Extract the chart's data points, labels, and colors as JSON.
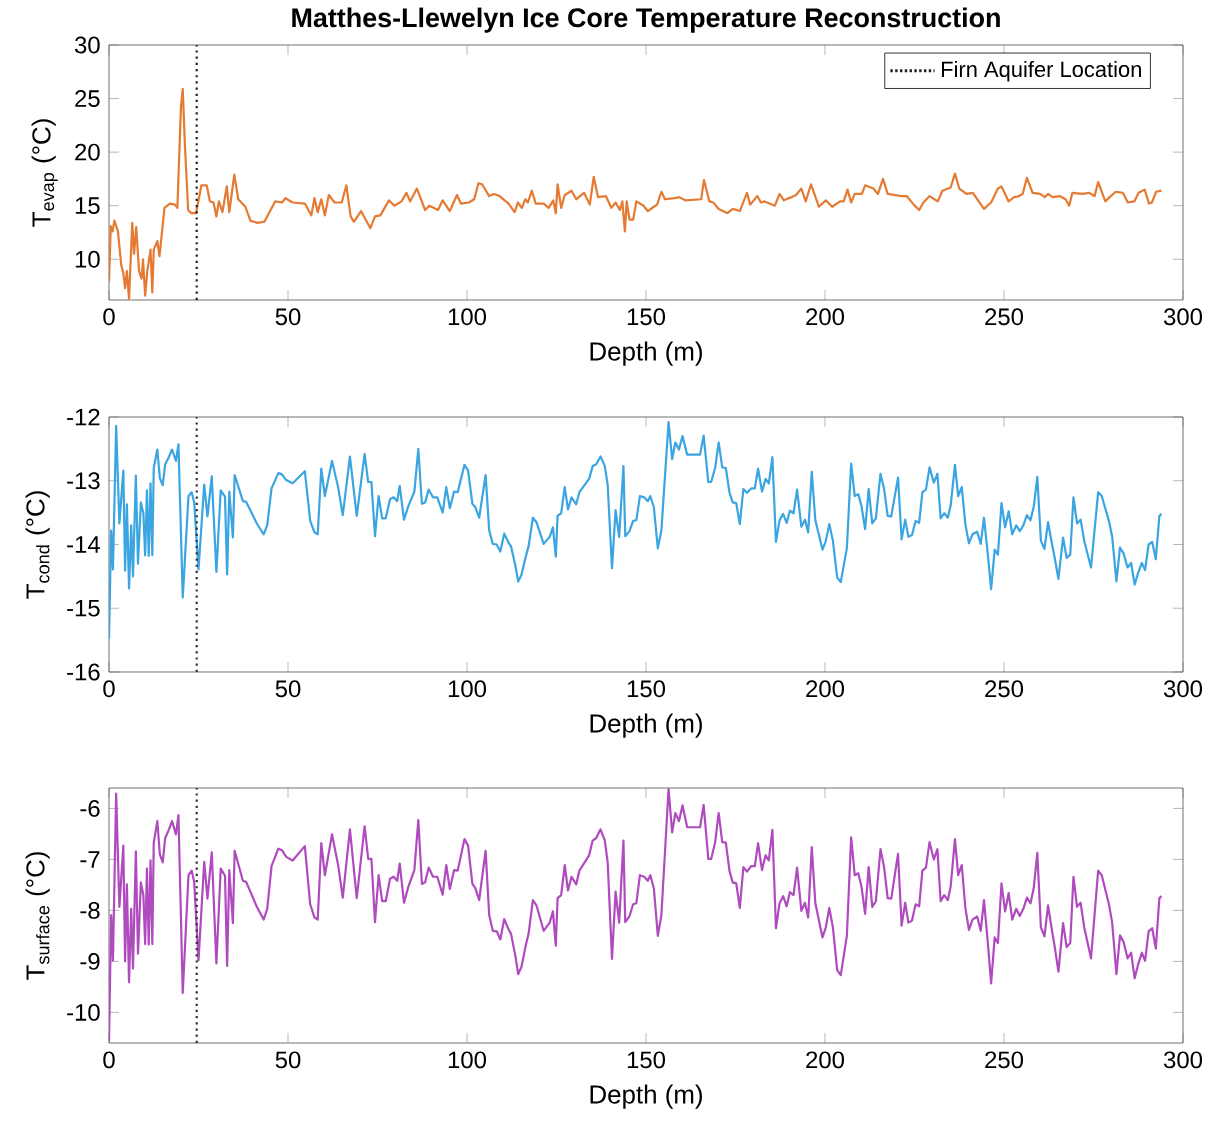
{
  "chart_data": [
    {
      "type": "line",
      "title": "Matthes-Llewelyn Ice Core Temperature Reconstruction",
      "xlabel": "Depth (m)",
      "ylabel": "T$_{evap}$ (°C)",
      "color": "#e57a33",
      "legend": "top right",
      "xlim": [
        0,
        300
      ],
      "xticks": [
        0,
        50,
        100,
        150,
        200,
        250,
        300
      ],
      "ylim": [
        6.2,
        30
      ],
      "yticks": [
        10,
        15,
        20,
        25,
        30
      ],
      "ref_lines": [
        {
          "axis": "x",
          "value": 24.5,
          "label": "Firn Aquifer Location",
          "color": "#222222",
          "line_style": "dotted"
        }
      ],
      "x": [
        0,
        0.5,
        1,
        1.5,
        2.5,
        3.4,
        4,
        4.5,
        5,
        5.6,
        6.5,
        7,
        7.6,
        8.4,
        9.1,
        9.5,
        10.1,
        10.7,
        11.6,
        12.1,
        12.5,
        13.5,
        14.1,
        15.5,
        17,
        18.4,
        19.1,
        20.1,
        20.6,
        21.2,
        22.1,
        23,
        24.3,
        25.8,
        27.3,
        28.2,
        29.2,
        30,
        30.7,
        31.7,
        32.9,
        33.6,
        35,
        36.1,
        38.1,
        39.5,
        41.5,
        43.4,
        46.4,
        48.3,
        49.3,
        51.3,
        54.7,
        56.5,
        57.4,
        58.3,
        59.3,
        60.3,
        61.4,
        63,
        65,
        66.3,
        67.5,
        68.4,
        70.4,
        73,
        74.3,
        75.8,
        78.2,
        79.7,
        81.7,
        83.1,
        84.1,
        86,
        88.3,
        89.5,
        91.9,
        93.2,
        95.2,
        97.2,
        98.3,
        100.5,
        102,
        103.2,
        104.2,
        106.2,
        107.6,
        109.1,
        111.6,
        113.3,
        114.2,
        115.3,
        116.3,
        117,
        118.1,
        119.2,
        121.4,
        122.8,
        124.1,
        124.8,
        125.3,
        126.3,
        127.3,
        129.2,
        130.5,
        132.7,
        134.3,
        135.4,
        136.6,
        138.8,
        140.3,
        141.5,
        142.7,
        143.4,
        144.1,
        144.6,
        145.4,
        146.4,
        147.3,
        149.3,
        150.5,
        152.2,
        153.1,
        154.3,
        155.3,
        158,
        159.2,
        161,
        165.4,
        166.2,
        167.7,
        168.8,
        170.3,
        172.8,
        174.2,
        176.2,
        178.2,
        179.1,
        181.1,
        182.1,
        183.1,
        184.5,
        186,
        187.3,
        188.5,
        190.6,
        191.9,
        193.4,
        194.6,
        196.1,
        198.3,
        200.2,
        202,
        204.2,
        205.2,
        206.3,
        207.3,
        208.3,
        210.3,
        211.2,
        213.5,
        214.8,
        216.2,
        217.5,
        221.3,
        222.8,
        224.8,
        226.3,
        227.5,
        229.2,
        231.5,
        232.8,
        235.1,
        236.3,
        237.5,
        239.5,
        241.3,
        244.4,
        246.4,
        248.3,
        249.3,
        251.3,
        252.8,
        254.2,
        255.2,
        256.4,
        258,
        260.1,
        261.4,
        262.3,
        263.6,
        265.5,
        267.2,
        268.2,
        269.1,
        271.9,
        273.8,
        275.3,
        276.3,
        278.3,
        279.5,
        281.2,
        283.2,
        284.6,
        286.4,
        287.6,
        289.3,
        290.5,
        291.3,
        292.5,
        294
      ],
      "values": [
        7.9,
        13.1,
        12.6,
        13.6,
        12.6,
        9.5,
        8.7,
        7.3,
        8.9,
        6.3,
        13.4,
        10.5,
        13.0,
        8.9,
        8.2,
        10.0,
        6.6,
        8.9,
        10.9,
        6.9,
        10.9,
        11.7,
        10.3,
        14.8,
        15.2,
        15.1,
        14.8,
        24.2,
        25.9,
        20.7,
        14.6,
        14.3,
        14.3,
        16.9,
        16.9,
        15.4,
        15.3,
        14.0,
        15.4,
        14.4,
        16.8,
        14.4,
        17.9,
        15.6,
        14.9,
        13.6,
        13.4,
        13.5,
        15.4,
        15.3,
        15.7,
        15.3,
        15.2,
        14.1,
        15.7,
        14.4,
        15.6,
        14.1,
        16.0,
        15.3,
        15.3,
        16.9,
        14.0,
        13.5,
        14.5,
        12.9,
        14.0,
        14.1,
        15.5,
        15.0,
        15.4,
        16.2,
        15.4,
        16.6,
        14.6,
        15.0,
        14.6,
        15.5,
        14.5,
        16.0,
        15.2,
        15.3,
        15.6,
        17.1,
        17.0,
        15.9,
        16.1,
        15.9,
        15.2,
        14.4,
        15.3,
        14.8,
        15.6,
        15.3,
        16.4,
        15.2,
        15.2,
        14.8,
        15.5,
        14.3,
        17.0,
        14.8,
        16.0,
        16.4,
        15.6,
        16.2,
        15.1,
        17.7,
        15.8,
        15.9,
        14.8,
        15.3,
        14.6,
        15.4,
        12.6,
        15.4,
        13.7,
        13.7,
        15.4,
        15.0,
        14.5,
        14.9,
        15.1,
        16.3,
        15.6,
        15.7,
        15.8,
        15.5,
        15.6,
        17.4,
        15.4,
        15.3,
        14.7,
        14.3,
        14.7,
        14.5,
        16.2,
        15.1,
        15.9,
        15.3,
        15.4,
        15.2,
        15.0,
        16.1,
        15.5,
        15.8,
        16.0,
        16.6,
        15.4,
        17.0,
        14.9,
        15.5,
        14.9,
        15.4,
        15.4,
        16.5,
        15.3,
        16.1,
        16.1,
        16.9,
        16.6,
        16.1,
        17.5,
        16.1,
        15.9,
        15.9,
        15.1,
        14.6,
        15.3,
        15.9,
        15.4,
        16.4,
        16.7,
        18.0,
        16.6,
        16.1,
        16.2,
        14.7,
        15.3,
        16.6,
        16.8,
        15.4,
        15.8,
        15.9,
        16.1,
        17.6,
        16.2,
        16.1,
        15.8,
        16.1,
        15.8,
        15.9,
        15.6,
        15.0,
        16.2,
        16.1,
        16.2,
        15.9,
        17.2,
        15.4,
        15.8,
        16.3,
        16.2,
        15.3,
        15.4,
        16.2,
        16.5,
        15.2,
        15.3,
        16.3,
        16.4
      ]
    },
    {
      "type": "line",
      "xlabel": "Depth (m)",
      "ylabel": "T$_{cond}$ (°C)",
      "color": "#3aa5e0",
      "xlim": [
        0,
        300
      ],
      "xticks": [
        0,
        50,
        100,
        150,
        200,
        250,
        300
      ],
      "ylim": [
        -16,
        -12
      ],
      "yticks": [
        -16,
        -15,
        -14,
        -13,
        -12
      ],
      "ref_lines": [
        {
          "axis": "x",
          "value": 24.5,
          "color": "#333333",
          "line_style": "dotted"
        }
      ],
      "x": [
        0,
        0.6,
        1.1,
        2,
        2.9,
        4,
        4.5,
        5,
        5.6,
        6.2,
        6.7,
        7.5,
        8.1,
        8.9,
        9.6,
        10.1,
        10.6,
        11.1,
        11.6,
        12.1,
        12.5,
        13.5,
        14.2,
        15,
        15.7,
        16.7,
        17.6,
        18.7,
        19.4,
        20.6,
        22.2,
        23.1,
        23.8,
        25,
        26.6,
        27.5,
        28.7,
        30,
        31.2,
        32.4,
        33,
        33.6,
        34.6,
        35.1,
        37.4,
        38.3,
        41.3,
        43.2,
        44.2,
        45.4,
        47.3,
        48.3,
        49.5,
        51.3,
        54.7,
        56.2,
        57.4,
        58.3,
        59.3,
        60.3,
        62.3,
        64,
        65.3,
        67.3,
        69.2,
        71.4,
        72.4,
        73.3,
        74.3,
        75.3,
        76.3,
        77.3,
        78.5,
        79.5,
        80.5,
        81.2,
        82.4,
        83.6,
        85.3,
        86.4,
        87.4,
        88.3,
        89.3,
        90.5,
        91.7,
        93.2,
        94.2,
        95.2,
        96.4,
        97.4,
        99.3,
        100.3,
        101.5,
        102.3,
        103.4,
        105.2,
        106.2,
        107.2,
        108.3,
        109.3,
        110.4,
        111.6,
        112.3,
        113.5,
        114.3,
        115.2,
        116.5,
        117.2,
        118.4,
        119.4,
        121.4,
        123.1,
        124,
        124.8,
        125.3,
        126.3,
        127.3,
        128.2,
        129.2,
        130.5,
        131.4,
        134.1,
        135.1,
        136.1,
        137.3,
        138.5,
        139.3,
        140.5,
        141.5,
        142.5,
        143.7,
        144.2,
        145.4,
        146.4,
        147.3,
        148.3,
        149.5,
        150.5,
        151.2,
        152.2,
        153.3,
        154.3,
        156.3,
        157.3,
        158.2,
        159.2,
        160.2,
        161.5,
        165.1,
        166.1,
        167.4,
        168.2,
        169.3,
        170.3,
        171.3,
        172.3,
        173.3,
        174.2,
        175.2,
        176.2,
        177.2,
        178.2,
        179.4,
        180.4,
        181.3,
        182.4,
        183.4,
        184.3,
        185.3,
        186.3,
        187.3,
        188.3,
        189.3,
        190.2,
        191.2,
        192.2,
        193.4,
        194.4,
        195.3,
        196.3,
        197.3,
        199.3,
        200.2,
        201.2,
        202.2,
        203.4,
        204.4,
        206.1,
        207.3,
        208.3,
        209.3,
        210.2,
        211.2,
        212.2,
        213.2,
        214.2,
        215.5,
        216.5,
        217.5,
        218.5,
        220.4,
        221.4,
        222.4,
        223.3,
        224.3,
        225.3,
        226.3,
        227.2,
        228.2,
        229.2,
        230.4,
        231.4,
        232.3,
        233.3,
        234.3,
        235.1,
        236.3,
        237.2,
        238.2,
        239.2,
        240.2,
        241.2,
        242.5,
        243.5,
        244.4,
        245.4,
        246.4,
        247.4,
        248.3,
        249.3,
        250.3,
        251.3,
        252.3,
        253.4,
        254.4,
        255.4,
        256.4,
        257.4,
        258.3,
        259.3,
        260.3,
        261.3,
        262.3,
        263.3,
        264.2,
        265.2,
        266.5,
        267.5,
        268.5,
        269.4,
        270.4,
        271.4,
        272.4,
        274.3,
        276.3,
        277.3,
        279.3,
        280.2,
        281.4,
        282.4,
        283.4,
        284.5,
        285.5,
        286.5,
        287.5,
        288.5,
        289.4,
        290.4,
        291.4,
        292.4,
        293.4,
        294
      ],
      "values": [
        -15.48,
        -13.78,
        -14.39,
        -12.14,
        -13.67,
        -12.84,
        -14.41,
        -13.37,
        -14.69,
        -13.7,
        -14.5,
        -12.92,
        -14.3,
        -13.34,
        -13.51,
        -14.17,
        -13.15,
        -14.18,
        -13.04,
        -14.17,
        -12.8,
        -12.51,
        -12.96,
        -13.07,
        -12.74,
        -12.63,
        -12.51,
        -12.69,
        -12.43,
        -14.83,
        -13.24,
        -13.18,
        -13.34,
        -14.39,
        -13.06,
        -13.56,
        -12.93,
        -14.43,
        -13.15,
        -13.25,
        -14.47,
        -13.17,
        -13.89,
        -12.91,
        -13.32,
        -13.33,
        -13.67,
        -13.84,
        -13.7,
        -13.12,
        -12.88,
        -12.9,
        -12.99,
        -13.04,
        -12.85,
        -13.63,
        -13.81,
        -13.84,
        -12.81,
        -13.24,
        -12.69,
        -13.1,
        -13.54,
        -12.62,
        -13.55,
        -12.58,
        -13.02,
        -13.02,
        -13.87,
        -13.24,
        -13.59,
        -13.59,
        -13.29,
        -13.26,
        -13.32,
        -13.08,
        -13.61,
        -13.4,
        -13.17,
        -12.5,
        -13.36,
        -13.34,
        -13.14,
        -13.26,
        -13.26,
        -13.5,
        -13.1,
        -13.43,
        -13.17,
        -13.18,
        -12.75,
        -12.84,
        -13.36,
        -13.41,
        -13.58,
        -12.91,
        -13.78,
        -13.99,
        -14.0,
        -14.11,
        -13.83,
        -13.97,
        -14.03,
        -14.33,
        -14.58,
        -14.48,
        -14.17,
        -14.03,
        -13.58,
        -13.65,
        -13.99,
        -13.88,
        -13.73,
        -14.19,
        -13.55,
        -13.51,
        -13.1,
        -13.45,
        -13.26,
        -13.37,
        -13.18,
        -12.97,
        -12.77,
        -12.74,
        -12.62,
        -12.77,
        -13.07,
        -14.37,
        -13.46,
        -13.88,
        -12.77,
        -13.87,
        -13.79,
        -13.63,
        -13.62,
        -13.24,
        -13.26,
        -13.32,
        -13.24,
        -13.42,
        -14.06,
        -13.78,
        -12.08,
        -12.66,
        -12.4,
        -12.51,
        -12.3,
        -12.59,
        -12.59,
        -12.29,
        -13.02,
        -13.02,
        -12.8,
        -12.4,
        -12.79,
        -12.8,
        -13.18,
        -13.34,
        -13.35,
        -13.68,
        -13.13,
        -13.19,
        -13.12,
        -13.12,
        -12.81,
        -13.17,
        -12.97,
        -13.04,
        -12.63,
        -13.96,
        -13.62,
        -13.52,
        -13.66,
        -13.47,
        -13.51,
        -13.14,
        -13.72,
        -13.61,
        -13.81,
        -12.86,
        -13.62,
        -14.08,
        -13.95,
        -13.68,
        -13.94,
        -14.52,
        -14.59,
        -14.06,
        -12.73,
        -13.24,
        -13.21,
        -13.4,
        -13.76,
        -13.13,
        -13.67,
        -13.59,
        -12.89,
        -13.13,
        -13.55,
        -13.56,
        -12.95,
        -13.92,
        -13.61,
        -13.88,
        -13.85,
        -13.63,
        -13.66,
        -13.18,
        -13.14,
        -12.79,
        -13.03,
        -12.89,
        -13.59,
        -13.51,
        -13.58,
        -13.39,
        -12.75,
        -13.24,
        -13.1,
        -13.68,
        -13.98,
        -13.84,
        -13.8,
        -13.99,
        -13.58,
        -14.11,
        -14.7,
        -14.08,
        -14.16,
        -13.35,
        -13.73,
        -13.48,
        -13.84,
        -13.7,
        -13.79,
        -13.7,
        -13.54,
        -13.62,
        -13.41,
        -12.94,
        -13.94,
        -14.07,
        -13.65,
        -13.96,
        -14.22,
        -14.54,
        -13.89,
        -14.21,
        -14.16,
        -13.26,
        -13.67,
        -13.61,
        -13.94,
        -14.36,
        -13.18,
        -13.24,
        -13.63,
        -13.87,
        -14.58,
        -14.05,
        -14.14,
        -14.36,
        -14.29,
        -14.63,
        -14.44,
        -14.29,
        -14.4,
        -14.0,
        -13.96,
        -14.23,
        -13.55,
        -13.52
      ]
    },
    {
      "type": "line",
      "xlabel": "Depth (m)",
      "ylabel": "T$_{surface}$ (°C)",
      "color": "#b04bbf",
      "xlim": [
        0,
        300
      ],
      "xticks": [
        0,
        50,
        100,
        150,
        200,
        250,
        300
      ],
      "ylim": [
        -10.6,
        -5.6
      ],
      "yticks": [
        -10,
        -9,
        -8,
        -7,
        -6
      ],
      "ref_lines": [
        {
          "axis": "x",
          "value": 24.5,
          "color": "#333333",
          "line_style": "dotted"
        }
      ],
      "x": [
        0,
        0.6,
        1.1,
        2,
        2.9,
        4,
        4.5,
        5,
        5.6,
        6.2,
        6.7,
        7.5,
        8.1,
        8.9,
        9.6,
        10.1,
        10.6,
        11.1,
        11.6,
        12.1,
        12.5,
        13.5,
        14.2,
        15,
        15.7,
        16.7,
        17.6,
        18.7,
        19.4,
        20.6,
        22.2,
        23.1,
        23.8,
        25,
        26.6,
        27.5,
        28.7,
        30,
        31.2,
        32.4,
        33,
        33.6,
        34.6,
        35.1,
        37.4,
        38.3,
        41.3,
        43.2,
        44.2,
        45.4,
        47.3,
        48.3,
        49.5,
        51.3,
        54.7,
        56.2,
        57.4,
        58.3,
        59.3,
        60.3,
        62.3,
        64,
        65.3,
        67.3,
        69.2,
        71.4,
        72.4,
        73.3,
        74.3,
        75.3,
        76.3,
        77.3,
        78.5,
        79.5,
        80.5,
        81.2,
        82.4,
        83.6,
        85.3,
        86.4,
        87.4,
        88.3,
        89.3,
        90.5,
        91.7,
        93.2,
        94.2,
        95.2,
        96.4,
        97.4,
        99.3,
        100.3,
        101.5,
        102.3,
        103.4,
        105.2,
        106.2,
        107.2,
        108.3,
        109.3,
        110.4,
        111.6,
        112.3,
        113.5,
        114.3,
        115.2,
        116.5,
        117.2,
        118.4,
        119.4,
        121.4,
        123.1,
        124,
        124.8,
        125.3,
        126.3,
        127.3,
        128.2,
        129.2,
        130.5,
        131.4,
        134.1,
        135.1,
        136.1,
        137.3,
        138.5,
        139.3,
        140.5,
        141.5,
        142.5,
        143.7,
        144.2,
        145.4,
        146.4,
        147.3,
        148.3,
        149.5,
        150.5,
        151.2,
        152.2,
        153.3,
        154.3,
        156.3,
        157.3,
        158.2,
        159.2,
        160.2,
        161.5,
        165.1,
        166.1,
        167.4,
        168.2,
        169.3,
        170.3,
        171.3,
        172.3,
        173.3,
        174.2,
        175.2,
        176.2,
        177.2,
        178.2,
        179.4,
        180.4,
        181.3,
        182.4,
        183.4,
        184.3,
        185.3,
        186.3,
        187.3,
        188.3,
        189.3,
        190.2,
        191.2,
        192.2,
        193.4,
        194.4,
        195.3,
        196.3,
        197.3,
        199.3,
        200.2,
        201.2,
        202.2,
        203.4,
        204.4,
        206.1,
        207.3,
        208.3,
        209.3,
        210.2,
        211.2,
        212.2,
        213.2,
        214.2,
        215.5,
        216.5,
        217.5,
        218.5,
        220.4,
        221.4,
        222.4,
        223.3,
        224.3,
        225.3,
        226.3,
        227.2,
        228.2,
        229.2,
        230.4,
        231.4,
        232.3,
        233.3,
        234.3,
        235.1,
        236.3,
        237.2,
        238.2,
        239.2,
        240.2,
        241.2,
        242.5,
        243.5,
        244.4,
        245.4,
        246.4,
        247.4,
        248.3,
        249.3,
        250.3,
        251.3,
        252.3,
        253.4,
        254.4,
        255.4,
        256.4,
        257.4,
        258.3,
        259.3,
        260.3,
        261.3,
        262.3,
        263.3,
        264.2,
        265.2,
        266.5,
        267.5,
        268.5,
        269.4,
        270.4,
        271.4,
        272.4,
        274.3,
        276.3,
        277.3,
        279.3,
        280.2,
        281.4,
        282.4,
        283.4,
        284.5,
        285.5,
        286.5,
        287.5,
        288.5,
        289.4,
        290.4,
        291.4,
        292.4,
        293.4,
        294
      ],
      "values": [
        -10.56,
        -8.09,
        -8.98,
        -5.71,
        -7.93,
        -6.73,
        -9.0,
        -7.49,
        -9.41,
        -7.97,
        -9.14,
        -6.84,
        -8.85,
        -7.45,
        -7.7,
        -8.66,
        -7.18,
        -8.67,
        -7.02,
        -8.66,
        -6.67,
        -6.25,
        -6.9,
        -7.06,
        -6.58,
        -6.42,
        -6.25,
        -6.51,
        -6.13,
        -9.62,
        -7.31,
        -7.22,
        -7.45,
        -8.98,
        -7.05,
        -7.77,
        -6.86,
        -9.04,
        -7.18,
        -7.32,
        -9.09,
        -7.21,
        -8.25,
        -6.83,
        -7.42,
        -7.44,
        -7.93,
        -8.18,
        -7.97,
        -7.13,
        -6.79,
        -6.82,
        -6.95,
        -7.02,
        -6.74,
        -7.88,
        -8.14,
        -8.18,
        -6.68,
        -7.31,
        -6.51,
        -7.11,
        -7.75,
        -6.41,
        -7.76,
        -6.35,
        -6.99,
        -6.99,
        -8.23,
        -7.31,
        -7.82,
        -7.82,
        -7.38,
        -7.34,
        -7.42,
        -7.08,
        -7.85,
        -7.54,
        -7.21,
        -6.23,
        -7.48,
        -7.45,
        -7.16,
        -7.34,
        -7.34,
        -7.69,
        -7.11,
        -7.58,
        -7.21,
        -7.22,
        -6.6,
        -6.73,
        -7.48,
        -7.56,
        -7.8,
        -6.83,
        -8.09,
        -8.4,
        -8.41,
        -8.57,
        -8.17,
        -8.37,
        -8.46,
        -8.89,
        -9.25,
        -9.11,
        -8.66,
        -8.46,
        -7.8,
        -7.9,
        -8.4,
        -8.24,
        -8.02,
        -8.69,
        -7.76,
        -7.7,
        -7.11,
        -7.61,
        -7.34,
        -7.49,
        -7.22,
        -6.92,
        -6.63,
        -6.58,
        -6.41,
        -6.63,
        -7.06,
        -8.95,
        -7.63,
        -8.24,
        -6.63,
        -8.23,
        -8.11,
        -7.88,
        -7.86,
        -7.31,
        -7.34,
        -7.42,
        -7.31,
        -7.57,
        -8.5,
        -8.09,
        -5.62,
        -6.47,
        -6.09,
        -6.25,
        -5.94,
        -6.37,
        -6.37,
        -5.93,
        -6.99,
        -6.99,
        -6.67,
        -6.09,
        -6.66,
        -6.67,
        -7.22,
        -7.45,
        -7.47,
        -7.95,
        -7.15,
        -7.24,
        -7.13,
        -7.13,
        -6.68,
        -7.21,
        -6.92,
        -7.02,
        -6.42,
        -8.35,
        -7.86,
        -7.72,
        -7.92,
        -7.64,
        -7.7,
        -7.16,
        -8.01,
        -7.85,
        -8.14,
        -6.76,
        -7.86,
        -8.53,
        -8.34,
        -7.95,
        -8.33,
        -9.17,
        -9.27,
        -8.5,
        -6.57,
        -7.31,
        -7.27,
        -7.54,
        -8.07,
        -7.15,
        -7.93,
        -7.82,
        -6.8,
        -7.15,
        -7.76,
        -7.77,
        -6.89,
        -8.3,
        -7.85,
        -8.24,
        -8.2,
        -7.88,
        -7.92,
        -7.22,
        -7.16,
        -6.66,
        -7.0,
        -6.8,
        -7.82,
        -7.7,
        -7.8,
        -7.53,
        -6.6,
        -7.31,
        -7.11,
        -7.95,
        -8.38,
        -8.18,
        -8.12,
        -8.4,
        -7.8,
        -8.57,
        -9.43,
        -8.53,
        -8.64,
        -7.47,
        -8.02,
        -7.66,
        -8.18,
        -7.97,
        -8.11,
        -7.97,
        -7.75,
        -7.86,
        -7.56,
        -6.87,
        -8.33,
        -8.51,
        -7.9,
        -8.35,
        -8.73,
        -9.2,
        -8.25,
        -8.72,
        -8.64,
        -7.34,
        -7.93,
        -7.85,
        -8.33,
        -8.94,
        -7.22,
        -7.31,
        -7.88,
        -8.23,
        -9.25,
        -8.49,
        -8.62,
        -8.94,
        -8.83,
        -9.33,
        -9.05,
        -8.83,
        -8.99,
        -8.41,
        -8.35,
        -8.75,
        -7.76,
        -7.72
      ]
    }
  ]
}
